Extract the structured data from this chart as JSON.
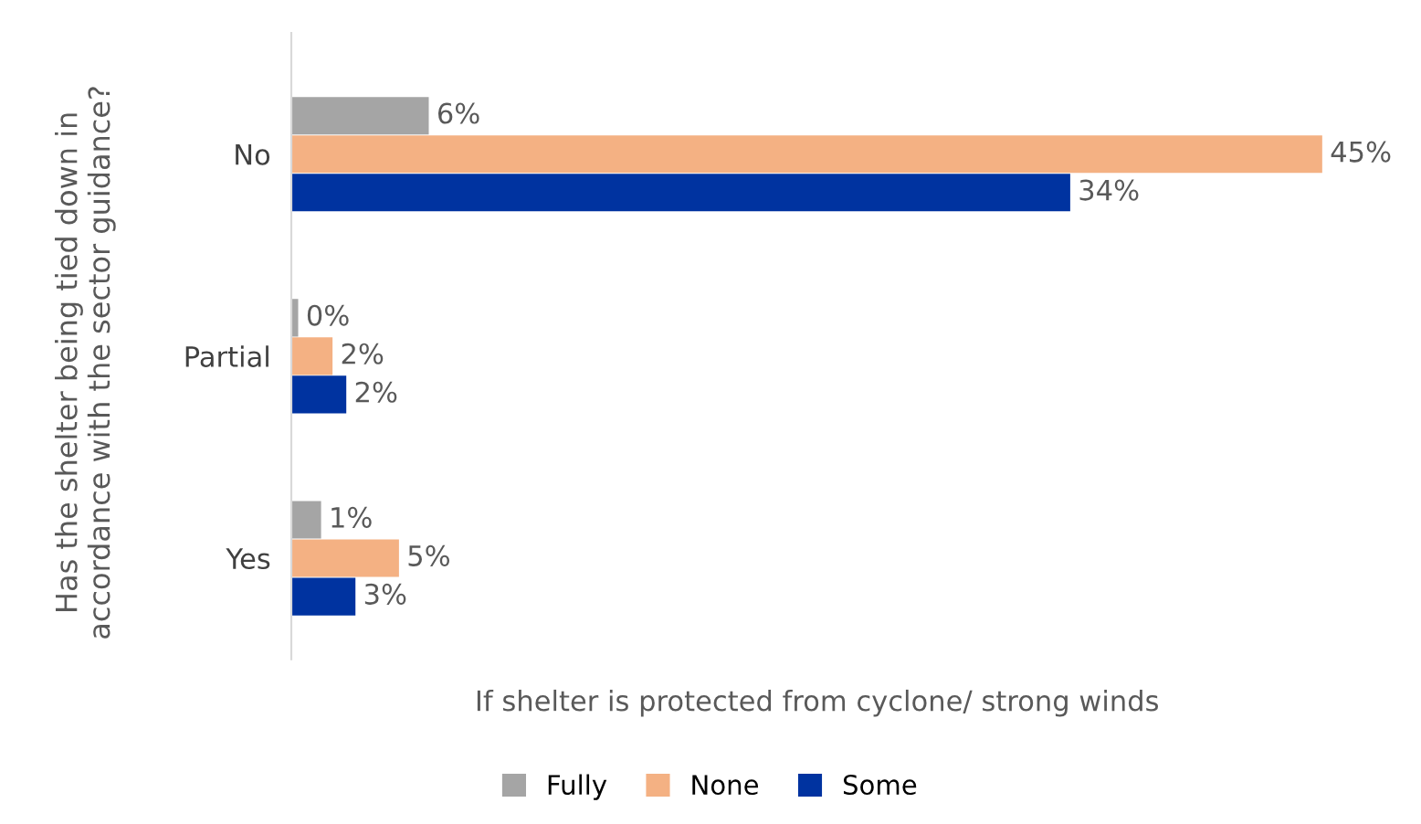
{
  "chart_data": {
    "type": "bar",
    "orientation": "horizontal",
    "categories": [
      "No",
      "Partial",
      "Yes"
    ],
    "xlabel": "If shelter is protected from cyclone/ strong winds",
    "ylabel": "Has the shelter being tied down in accordance with the sector guidance?",
    "series": [
      {
        "name": "Fully",
        "color": "#a5a5a5",
        "values": [
          6,
          0.3,
          1.3
        ],
        "value_labels": [
          "6%",
          "0%",
          "1%"
        ]
      },
      {
        "name": "None",
        "color": "#f4b183",
        "values": [
          45,
          1.8,
          4.7
        ],
        "value_labels": [
          "45%",
          "2%",
          "5%"
        ]
      },
      {
        "name": "Some",
        "color": "#0033a0",
        "values": [
          34,
          2.4,
          2.8
        ],
        "value_labels": [
          "34%",
          "2%",
          "3%"
        ]
      }
    ],
    "legend": "bottom",
    "grid": false
  }
}
